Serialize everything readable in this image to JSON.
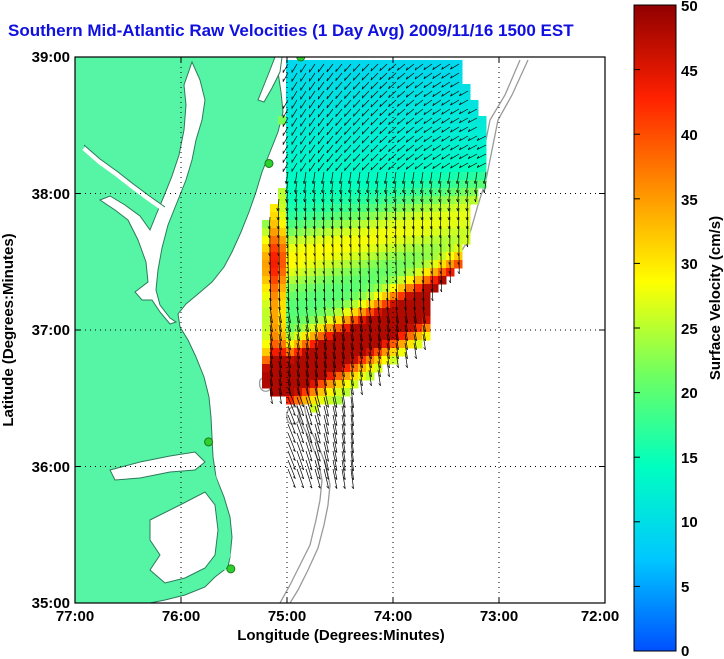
{
  "title": "Southern Mid-Atlantic Raw Velocities (1 Day Avg) 2009/11/16 1500 EST",
  "x_axis": {
    "label": "Longitude (Degrees:Minutes)",
    "ticks": [
      "77:00",
      "76:00",
      "75:00",
      "74:00",
      "73:00",
      "72:00"
    ]
  },
  "y_axis": {
    "label": "Latitude (Degrees:Minutes)",
    "ticks": [
      "39:00",
      "38:00",
      "37:00",
      "36:00",
      "35:00"
    ]
  },
  "colorbar": {
    "label": "Surface Velocity (cm/s)",
    "min": 0,
    "max": 50,
    "ticks": [
      "50",
      "45",
      "40",
      "35",
      "30",
      "25",
      "20",
      "15",
      "10",
      "5",
      "0"
    ],
    "colors": [
      "#0050ff",
      "#00c8ff",
      "#00ffc0",
      "#70ff60",
      "#ffff00",
      "#ff9000",
      "#ff2000",
      "#900000"
    ]
  },
  "colors": {
    "land": "#55f5a5",
    "water": "#ffffff",
    "coastline": "#2c7a5a",
    "bathymetry": "#9a9a9a",
    "vectors": "#000000",
    "stations": "#2dd02d",
    "title": "#1010e0"
  },
  "map_extent": {
    "lon_min": -77,
    "lon_max": -72,
    "lat_min": 35,
    "lat_max": 39
  },
  "stations": [
    {
      "lon": -74.87,
      "lat": 39.0
    },
    {
      "lon": -75.17,
      "lat": 38.22
    },
    {
      "lon": -75.74,
      "lat": 36.18
    },
    {
      "lon": -75.53,
      "lat": 35.25
    }
  ]
}
